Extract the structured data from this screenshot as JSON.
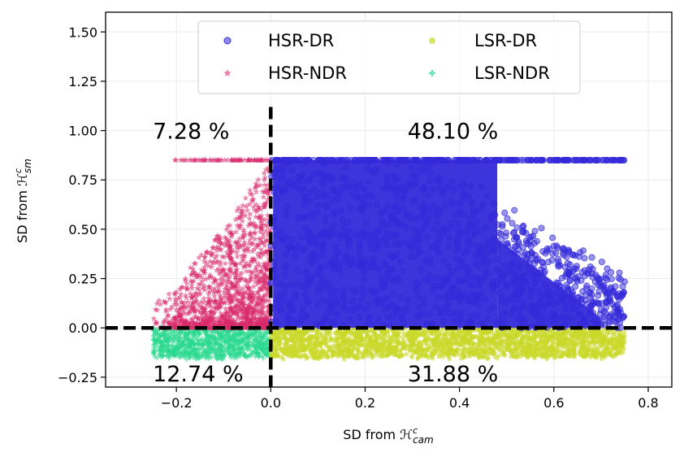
{
  "chart_data": {
    "type": "scatter",
    "xlabel": "SD from ℋ",
    "xlabel_sup": "c",
    "xlabel_sub": "cam",
    "ylabel": "SD from ℋ",
    "ylabel_sup": "c",
    "ylabel_sub": "sm",
    "xlim": [
      -0.35,
      0.85
    ],
    "ylim": [
      -0.3,
      1.6
    ],
    "x_ticks": [
      -0.2,
      0.0,
      0.2,
      0.4,
      0.6,
      0.8
    ],
    "x_tick_labels": [
      "−0.2",
      "0.0",
      "0.2",
      "0.4",
      "0.6",
      "0.8"
    ],
    "y_ticks": [
      -0.25,
      0.0,
      0.25,
      0.5,
      0.75,
      1.0,
      1.25,
      1.5
    ],
    "y_tick_labels": [
      "−0.25",
      "0.00",
      "0.25",
      "0.50",
      "0.75",
      "1.00",
      "1.25",
      "1.50"
    ],
    "grid": true,
    "legend_placement": "top-center",
    "reference_lines": {
      "vertical_x": 0.0,
      "horizontal_y": 0.0,
      "style": "dashed",
      "color": "#000000"
    },
    "series": [
      {
        "name": "HSR-DR",
        "marker": "circle",
        "color": "#3329d9",
        "x_range": [
          0.0,
          0.75
        ],
        "y_range": [
          0.0,
          0.85
        ]
      },
      {
        "name": "HSR-NDR",
        "marker": "star",
        "color": "#d82a6b",
        "x_range": [
          -0.25,
          0.0
        ],
        "y_range": [
          0.0,
          0.85
        ]
      },
      {
        "name": "LSR-DR",
        "marker": "pentagon",
        "color": "#c9d82a",
        "x_range": [
          0.0,
          0.75
        ],
        "y_range": [
          -0.15,
          0.0
        ]
      },
      {
        "name": "LSR-NDR",
        "marker": "plus",
        "color": "#2ad88e",
        "x_range": [
          -0.25,
          0.0
        ],
        "y_range": [
          -0.15,
          0.0
        ]
      }
    ],
    "annotations": [
      {
        "text": "7.28 %",
        "x": -0.25,
        "y": 1.0
      },
      {
        "text": "48.10 %",
        "x": 0.29,
        "y": 1.0
      },
      {
        "text": "12.74 %",
        "x": -0.25,
        "y": -0.23
      },
      {
        "text": "31.88 %",
        "x": 0.29,
        "y": -0.23
      }
    ]
  }
}
